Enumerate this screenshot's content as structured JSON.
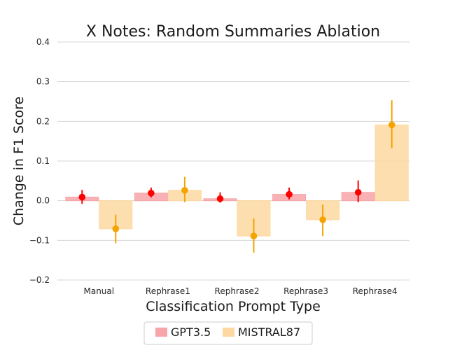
{
  "chart_data": {
    "type": "bar",
    "title": "X Notes: Random Summaries Ablation",
    "xlabel": "Classification Prompt Type",
    "ylabel": "Change in F1 Score",
    "categories": [
      "Manual",
      "Rephrase1",
      "Rephrase2",
      "Rephrase3",
      "Rephrase4"
    ],
    "ylim": [
      -0.2,
      0.4
    ],
    "yticks": [
      -0.2,
      -0.1,
      0.0,
      0.1,
      0.2,
      0.3,
      0.4
    ],
    "ytick_labels": [
      "−0.2",
      "−0.1",
      "0.0",
      "0.1",
      "0.2",
      "0.3",
      "0.4"
    ],
    "grid": true,
    "legend_position": "bottom-center",
    "series": [
      {
        "name": "GPT3.5",
        "bar_color": "#f7a5a8",
        "point_color": "#ff0000",
        "values": [
          0.009,
          0.019,
          0.005,
          0.016,
          0.021
        ],
        "error_low": [
          -0.008,
          0.008,
          -0.005,
          0.003,
          -0.004
        ],
        "error_high": [
          0.027,
          0.033,
          0.021,
          0.033,
          0.051
        ]
      },
      {
        "name": "MISTRAL87",
        "bar_color": "#fdd9a1",
        "point_color": "#f5a300",
        "values": [
          -0.071,
          0.026,
          -0.089,
          -0.048,
          0.191
        ],
        "error_low": [
          -0.107,
          -0.004,
          -0.131,
          -0.089,
          0.132
        ],
        "error_high": [
          -0.035,
          0.06,
          -0.045,
          -0.01,
          0.253
        ]
      }
    ]
  }
}
